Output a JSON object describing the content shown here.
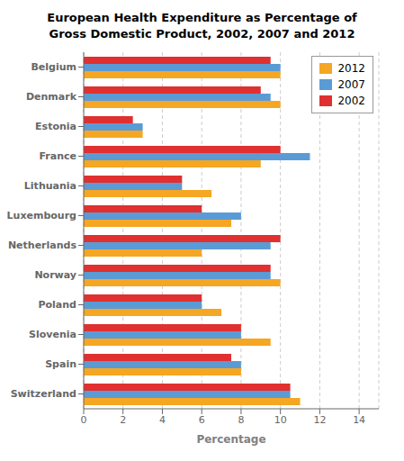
{
  "chart_data": {
    "type": "bar",
    "orientation": "horizontal",
    "title": "European Health Expenditure as Percentage of\nGross Domestic Product, 2002, 2007 and 2012",
    "xlabel": "Percentage",
    "categories": [
      "Belgium",
      "Denmark",
      "Estonia",
      "France",
      "Lithuania",
      "Luxembourg",
      "Netherlands",
      "Norway",
      "Poland",
      "Slovenia",
      "Spain",
      "Switzerland"
    ],
    "series": [
      {
        "name": "2002",
        "color": "#E03030",
        "values": [
          9.5,
          9.0,
          2.5,
          10.0,
          5.0,
          6.0,
          10.0,
          9.5,
          6.0,
          8.0,
          7.5,
          10.5
        ]
      },
      {
        "name": "2007",
        "color": "#5B9BD5",
        "values": [
          10.0,
          9.5,
          3.0,
          11.5,
          5.0,
          8.0,
          9.5,
          9.5,
          6.0,
          8.0,
          8.0,
          10.5
        ]
      },
      {
        "name": "2012",
        "color": "#F5A623",
        "values": [
          10.0,
          10.0,
          3.0,
          9.0,
          6.5,
          7.5,
          6.0,
          10.0,
          7.0,
          9.5,
          8.0,
          11.0
        ]
      }
    ],
    "xlim": [
      0,
      15
    ],
    "xticks": [
      0,
      2,
      4,
      6,
      8,
      10,
      12,
      14
    ],
    "grid": true,
    "legend": "upper right"
  }
}
